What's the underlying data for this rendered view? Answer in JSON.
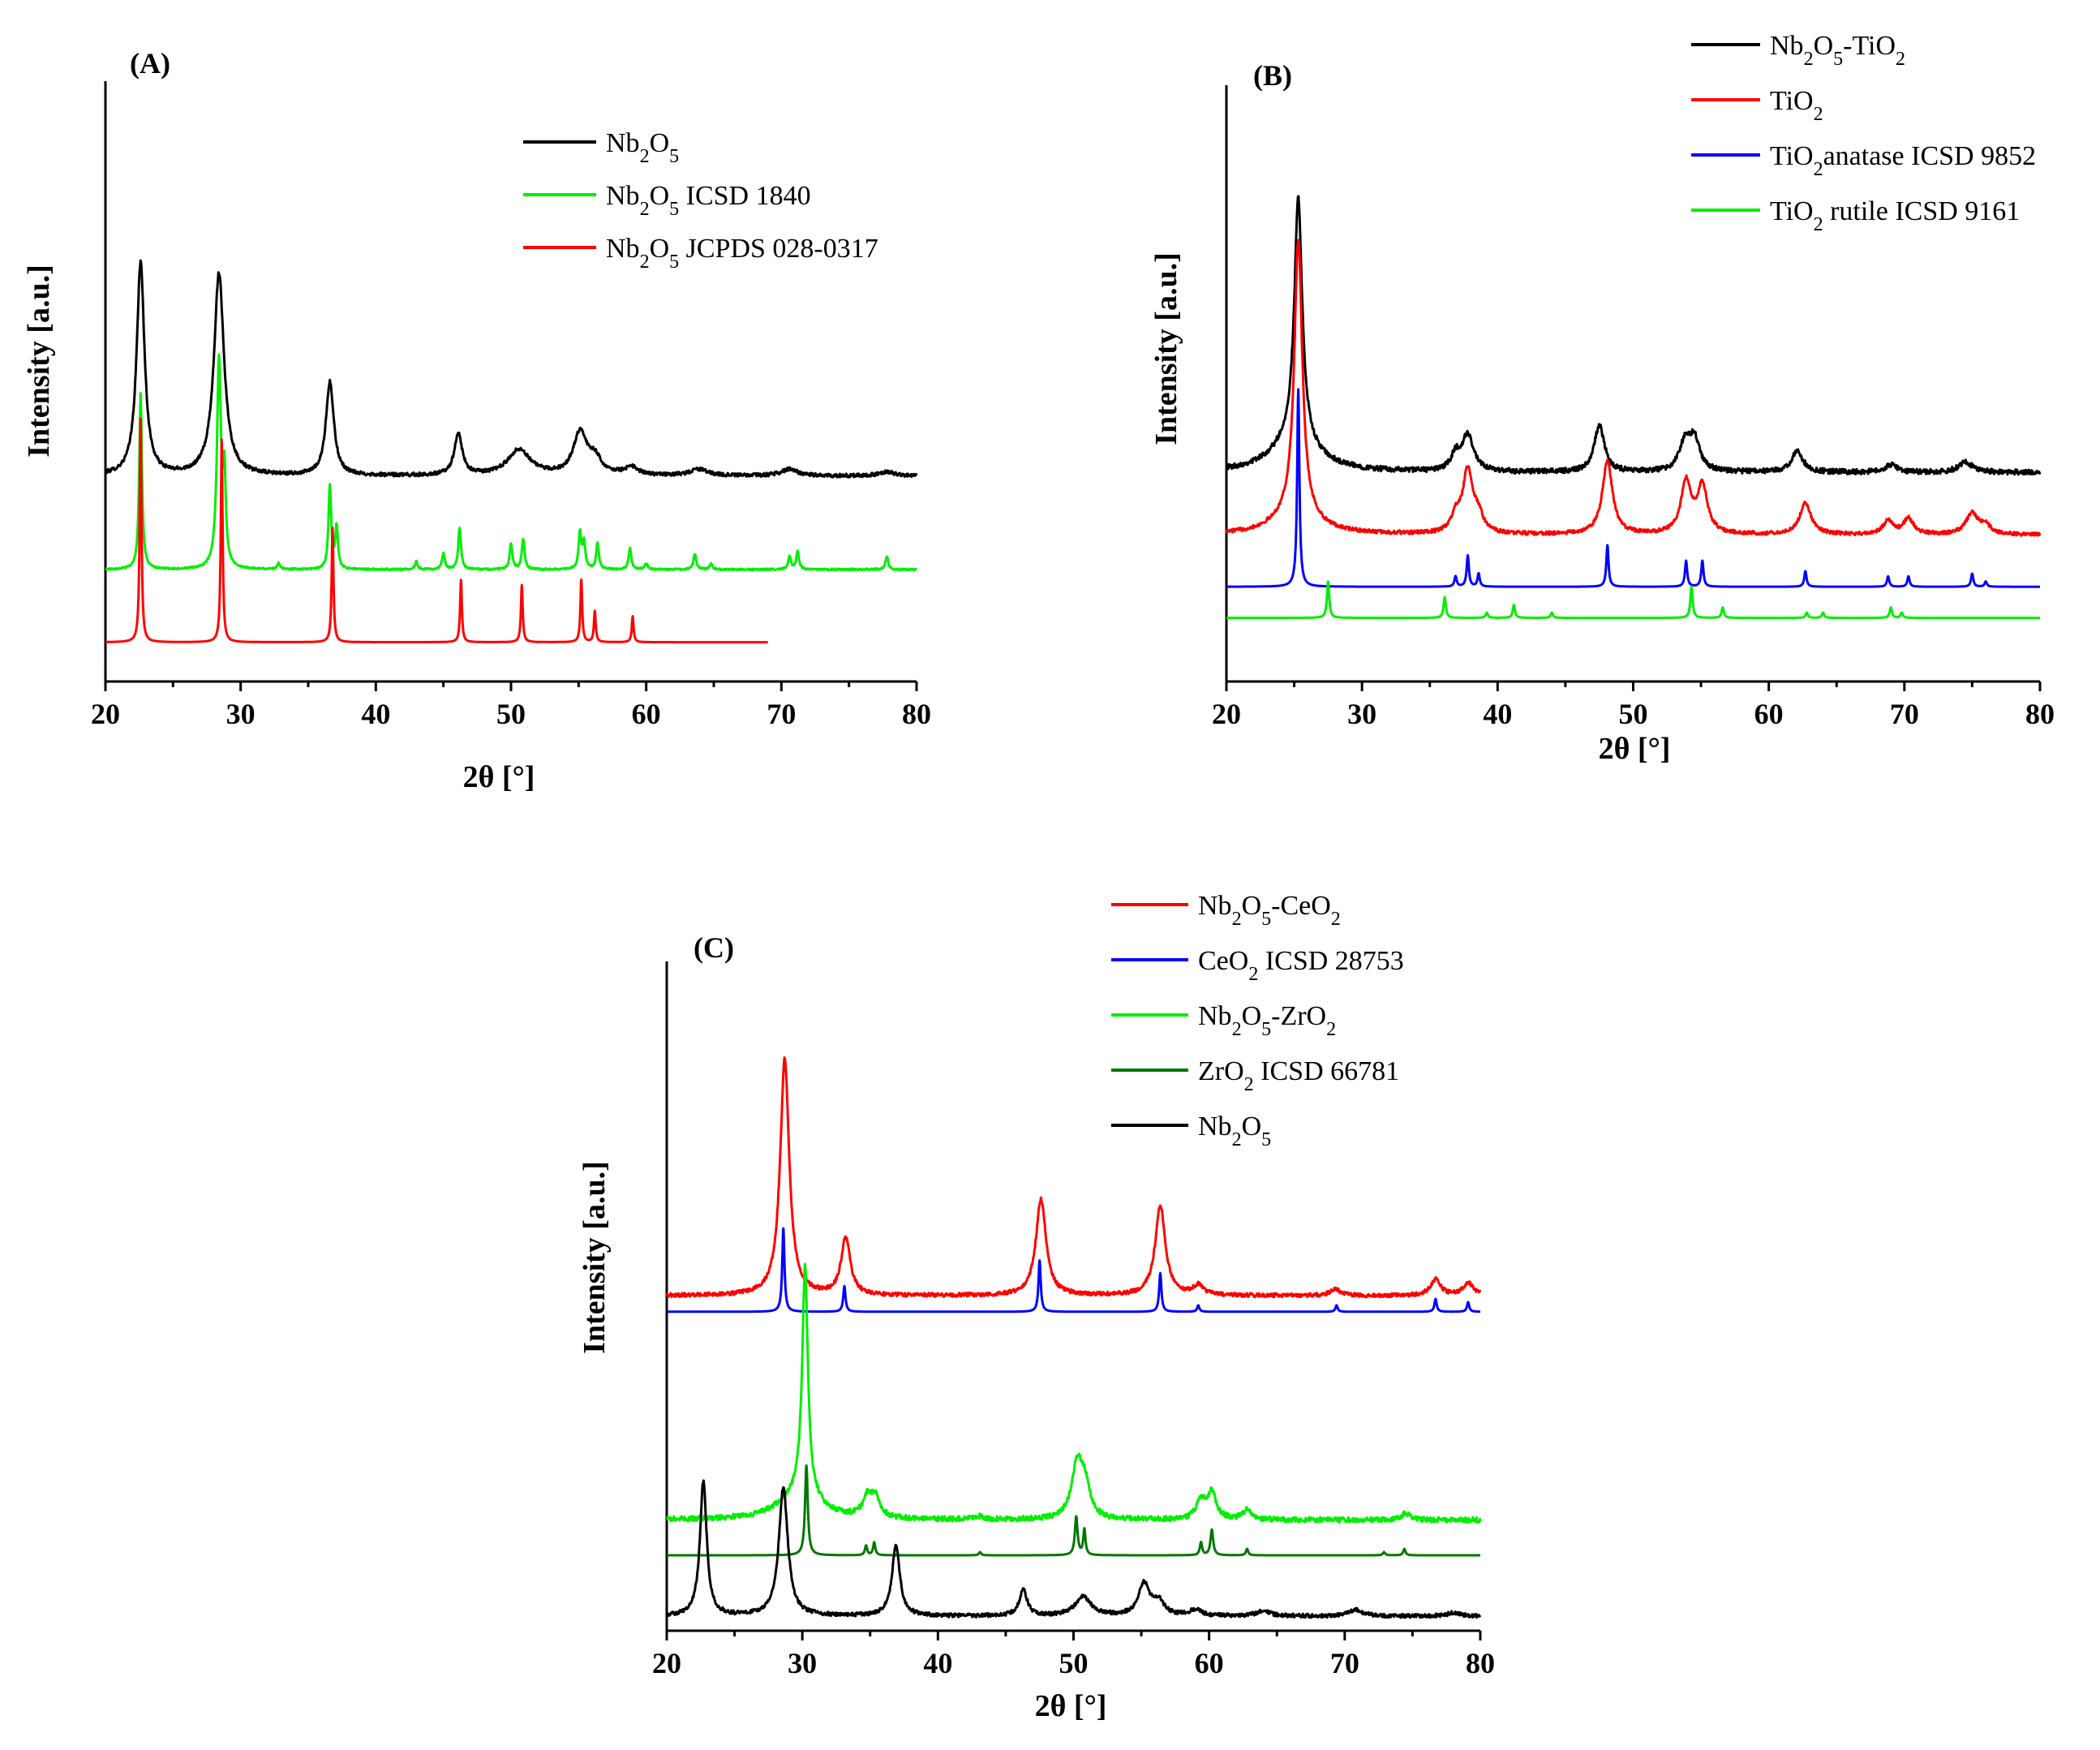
{
  "chart_data": [
    {
      "panel": "(A)",
      "type": "line",
      "xlabel": "2θ [°]",
      "ylabel": "Intensity [a.u.]",
      "xlim": [
        20,
        80
      ],
      "xticks": [
        20,
        30,
        40,
        50,
        60,
        70,
        80
      ],
      "ylim": [
        0,
        100
      ],
      "grid": false,
      "legend_position": "top-right",
      "series": [
        {
          "name": "Nb2O5",
          "legend": [
            "Nb",
            "2",
            "O",
            "5",
            ""
          ],
          "color": "#000000",
          "noise": 0.35,
          "baseline": 38,
          "xmax": 80,
          "peaks": [
            [
              22.6,
              41,
              0.35
            ],
            [
              28.4,
              39,
              0.45
            ],
            [
              36.6,
              18,
              0.35
            ],
            [
              46.1,
              8,
              0.35
            ],
            [
              50.6,
              5,
              1.0
            ],
            [
              55.1,
              8,
              0.6
            ],
            [
              56.2,
              3,
              0.6
            ],
            [
              58.9,
              1.5,
              0.6
            ],
            [
              63.9,
              1.2,
              0.8
            ],
            [
              70.6,
              1.3,
              0.7
            ],
            [
              77.8,
              0.8,
              0.7
            ]
          ]
        },
        {
          "name": "Nb2O5 ICSD 1840",
          "legend": [
            "Nb",
            "2",
            "O",
            "5",
            " ICSD 1840"
          ],
          "color": "#00ee00",
          "noise": 0.15,
          "baseline": 20,
          "xmax": 80,
          "peaks": [
            [
              22.6,
              34,
              0.12
            ],
            [
              28.4,
              40,
              0.18
            ],
            [
              28.8,
              16,
              0.12
            ],
            [
              36.6,
              16,
              0.12
            ],
            [
              37.1,
              8,
              0.12
            ],
            [
              46.2,
              8,
              0.12
            ],
            [
              50.0,
              5,
              0.12
            ],
            [
              50.9,
              6,
              0.12
            ],
            [
              55.1,
              7,
              0.12
            ],
            [
              55.4,
              5,
              0.12
            ],
            [
              56.4,
              5,
              0.12
            ],
            [
              58.8,
              4,
              0.12
            ],
            [
              63.6,
              3,
              0.12
            ],
            [
              70.6,
              2.5,
              0.12
            ],
            [
              71.2,
              3.5,
              0.12
            ],
            [
              77.8,
              2.5,
              0.12
            ],
            [
              32.8,
              1.2,
              0.12
            ],
            [
              43.0,
              1.5,
              0.12
            ],
            [
              45.0,
              3,
              0.12
            ],
            [
              60.0,
              1.2,
              0.12
            ],
            [
              64.8,
              1.2,
              0.12
            ]
          ]
        },
        {
          "name": "Nb2O5 JCPDS 028-0317",
          "legend": [
            "Nb",
            "2",
            "O",
            "5",
            " JCPDS 028-0317"
          ],
          "color": "#ff0000",
          "noise": 0,
          "baseline": 6,
          "xmax": 69,
          "peaks": [
            [
              22.6,
              43,
              0.08
            ],
            [
              28.6,
              39,
              0.08
            ],
            [
              36.8,
              22,
              0.08
            ],
            [
              46.3,
              12,
              0.08
            ],
            [
              50.8,
              11,
              0.08
            ],
            [
              55.2,
              12,
              0.08
            ],
            [
              56.2,
              6,
              0.08
            ],
            [
              59.0,
              5,
              0.08
            ]
          ]
        }
      ]
    },
    {
      "panel": "(B)",
      "type": "line",
      "xlabel": "2θ [°]",
      "ylabel": "Intensity [a.u.]",
      "xlim": [
        20,
        80
      ],
      "xticks": [
        20,
        30,
        40,
        50,
        60,
        70,
        80
      ],
      "ylim": [
        0,
        100
      ],
      "grid": false,
      "legend_position": "top-right",
      "series": [
        {
          "name": "Nb2O5-TiO2",
          "legend": [
            "Nb",
            "2",
            "O",
            "5",
            "-TiO",
            "2",
            ""
          ],
          "color": "#000000",
          "noise": 0.5,
          "baseline": 34,
          "xmax": 80,
          "peaks": [
            [
              25.3,
              47,
              0.35
            ],
            [
              25.0,
              6,
              2.0
            ],
            [
              36.9,
              3,
              0.4
            ],
            [
              37.8,
              7,
              0.5
            ],
            [
              47.5,
              9,
              0.45
            ],
            [
              53.8,
              5,
              0.5
            ],
            [
              54.5,
              6,
              0.5
            ],
            [
              62.1,
              4,
              0.5
            ],
            [
              69.0,
              1.5,
              0.5
            ],
            [
              74.5,
              2,
              0.6
            ]
          ]
        },
        {
          "name": "TiO2",
          "legend": [
            "TiO",
            "2",
            ""
          ],
          "color": "#ff0000",
          "noise": 0.35,
          "baseline": 22,
          "xmax": 80,
          "peaks": [
            [
              25.3,
              53,
              0.35
            ],
            [
              25.1,
              4,
              1.8
            ],
            [
              37.8,
              12,
              0.45
            ],
            [
              36.9,
              3,
              0.4
            ],
            [
              38.6,
              3,
              0.4
            ],
            [
              48.1,
              14,
              0.45
            ],
            [
              53.9,
              10,
              0.45
            ],
            [
              55.1,
              9,
              0.45
            ],
            [
              62.7,
              6,
              0.5
            ],
            [
              68.8,
              2.5,
              0.45
            ],
            [
              70.3,
              3,
              0.45
            ],
            [
              75.0,
              4,
              0.55
            ],
            [
              76.0,
              1.5,
              0.45
            ]
          ]
        },
        {
          "name": "TiO2anatase ICSD 9852",
          "legend": [
            "TiO",
            "2",
            "anatase ICSD 9852"
          ],
          "color": "#0000ff",
          "noise": 0,
          "baseline": 12,
          "xmax": 80,
          "peaks": [
            [
              25.3,
              38,
              0.1
            ],
            [
              36.9,
              2,
              0.1
            ],
            [
              37.8,
              6,
              0.1
            ],
            [
              38.6,
              2.5,
              0.1
            ],
            [
              48.1,
              8,
              0.1
            ],
            [
              53.9,
              5,
              0.1
            ],
            [
              55.1,
              5,
              0.1
            ],
            [
              62.7,
              3,
              0.1
            ],
            [
              68.8,
              2,
              0.1
            ],
            [
              70.3,
              2,
              0.1
            ],
            [
              75.0,
              2.5,
              0.1
            ],
            [
              76.0,
              1,
              0.1
            ]
          ]
        },
        {
          "name": "TiO2 rutile ICSD 9161",
          "legend": [
            "TiO",
            "2",
            " rutile ICSD 9161"
          ],
          "color": "#00ee00",
          "noise": 0,
          "baseline": 6,
          "xmax": 80,
          "peaks": [
            [
              27.5,
              7,
              0.1
            ],
            [
              36.1,
              4,
              0.1
            ],
            [
              39.2,
              1,
              0.1
            ],
            [
              41.2,
              2.5,
              0.1
            ],
            [
              44.0,
              1,
              0.1
            ],
            [
              54.3,
              6,
              0.1
            ],
            [
              56.6,
              2,
              0.1
            ],
            [
              62.8,
              1,
              0.1
            ],
            [
              64.0,
              1,
              0.1
            ],
            [
              69.0,
              2,
              0.1
            ],
            [
              69.8,
              1,
              0.1
            ]
          ]
        }
      ]
    },
    {
      "panel": "(C)",
      "type": "line",
      "xlabel": "2θ [°]",
      "ylabel": "Intensity [a.u.]",
      "xlim": [
        20,
        80
      ],
      "xticks": [
        20,
        30,
        40,
        50,
        60,
        70,
        80
      ],
      "ylim": [
        0,
        100
      ],
      "grid": false,
      "legend_position": "top",
      "series": [
        {
          "name": "Nb2O5-CeO2",
          "legend": [
            "Nb",
            "2",
            "O",
            "5",
            "-CeO",
            "2",
            ""
          ],
          "color": "#ff0000",
          "noise": 0.3,
          "baseline": 51,
          "xmax": 80,
          "peaks": [
            [
              28.7,
              37,
              0.4
            ],
            [
              33.2,
              9,
              0.4
            ],
            [
              47.6,
              15,
              0.45
            ],
            [
              56.4,
              14,
              0.45
            ],
            [
              59.2,
              1.5,
              0.45
            ],
            [
              69.3,
              1,
              0.45
            ],
            [
              76.7,
              2.5,
              0.45
            ],
            [
              79.1,
              2,
              0.45
            ]
          ]
        },
        {
          "name": "CeO2 ICSD 28753",
          "legend": [
            "CeO",
            "2",
            " ICSD 28753"
          ],
          "color": "#0000ff",
          "noise": 0,
          "baseline": 48.5,
          "xmax": 80,
          "peaks": [
            [
              28.6,
              13,
              0.1
            ],
            [
              33.1,
              4,
              0.1
            ],
            [
              47.5,
              8,
              0.1
            ],
            [
              56.4,
              6,
              0.1
            ],
            [
              59.2,
              1,
              0.1
            ],
            [
              69.4,
              1,
              0.1
            ],
            [
              76.7,
              2,
              0.1
            ],
            [
              79.1,
              1.5,
              0.1
            ]
          ]
        },
        {
          "name": "Nb2O5-ZrO2",
          "legend": [
            "Nb",
            "2",
            "O",
            "5",
            "-ZrO",
            "2",
            ""
          ],
          "color": "#00ee00",
          "noise": 0.4,
          "baseline": 16,
          "xmax": 80,
          "peaks": [
            [
              30.2,
              36,
              0.25
            ],
            [
              29.8,
              4,
              1.8
            ],
            [
              34.8,
              3,
              0.4
            ],
            [
              35.4,
              3,
              0.4
            ],
            [
              43.0,
              0.5,
              0.4
            ],
            [
              50.3,
              9,
              0.5
            ],
            [
              50.9,
              4,
              0.4
            ],
            [
              59.4,
              3,
              0.4
            ],
            [
              60.2,
              4,
              0.4
            ],
            [
              62.8,
              1.5,
              0.4
            ],
            [
              74.5,
              1,
              0.4
            ]
          ]
        },
        {
          "name": "ZrO2 ICSD 66781",
          "legend": [
            "ZrO",
            "2",
            " ICSD 66781"
          ],
          "color": "#007700",
          "noise": 0,
          "baseline": 10.5,
          "xmax": 80,
          "peaks": [
            [
              30.3,
              14,
              0.12
            ],
            [
              34.7,
              1.5,
              0.1
            ],
            [
              35.3,
              2,
              0.1
            ],
            [
              43.1,
              0.5,
              0.1
            ],
            [
              50.2,
              6,
              0.12
            ],
            [
              50.8,
              4,
              0.1
            ],
            [
              59.4,
              2,
              0.1
            ],
            [
              60.2,
              4,
              0.12
            ],
            [
              62.8,
              1,
              0.1
            ],
            [
              72.9,
              0.5,
              0.1
            ],
            [
              74.4,
              1,
              0.1
            ]
          ]
        },
        {
          "name": "Nb2O5",
          "legend": [
            "Nb",
            "2",
            "O",
            "5",
            ""
          ],
          "color": "#000000",
          "noise": 0.3,
          "baseline": 1,
          "xmax": 80,
          "peaks": [
            [
              22.7,
              21,
              0.3
            ],
            [
              28.6,
              20,
              0.4
            ],
            [
              36.9,
              11,
              0.35
            ],
            [
              46.3,
              4,
              0.35
            ],
            [
              50.7,
              3,
              0.7
            ],
            [
              55.2,
              5,
              0.5
            ],
            [
              56.3,
              2,
              0.5
            ],
            [
              59.0,
              1,
              0.5
            ],
            [
              64.0,
              0.8,
              0.6
            ],
            [
              70.8,
              1,
              0.6
            ],
            [
              78.0,
              0.5,
              0.6
            ]
          ]
        }
      ]
    }
  ]
}
